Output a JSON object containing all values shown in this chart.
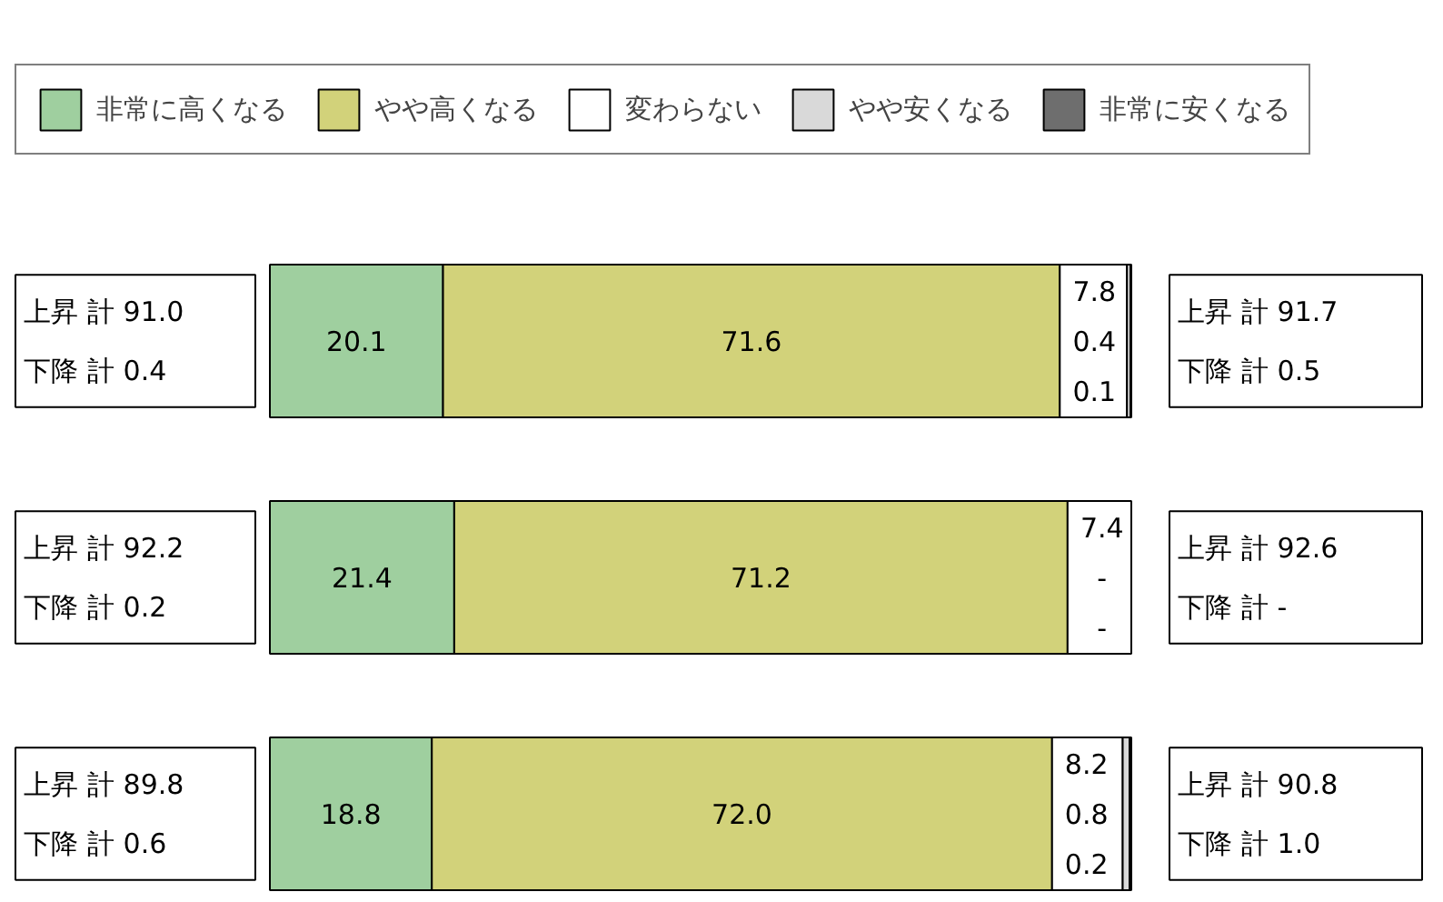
{
  "chart_data": {
    "type": "bar",
    "orientation": "horizontal",
    "stacked": true,
    "categories": [
      null,
      null,
      null
    ],
    "legend": "top",
    "tick_labels": false,
    "series": [
      {
        "name": "非常に高くなる",
        "color": "#9fcf9f",
        "values": [
          20.1,
          21.4,
          18.8
        ],
        "value_labels": [
          "20.1",
          "21.4",
          "18.8"
        ]
      },
      {
        "name": "やや高くなる",
        "color": "#d2d27a",
        "values": [
          71.6,
          71.2,
          72.0
        ],
        "value_labels": [
          "71.6",
          "71.2",
          "72.0"
        ]
      },
      {
        "name": "変わらない",
        "color": "#ffffff",
        "values": [
          7.8,
          7.4,
          8.2
        ],
        "value_labels": [
          "7.8",
          "7.4",
          "8.2"
        ]
      },
      {
        "name": "やや安くなる",
        "color": "#d9d9d9",
        "values": [
          0.4,
          null,
          0.8
        ],
        "value_labels": [
          "0.4",
          "-",
          "0.8"
        ]
      },
      {
        "name": "非常に安くなる",
        "color": "#6e6e6e",
        "values": [
          0.1,
          null,
          0.2
        ],
        "value_labels": [
          "0.1",
          "-",
          "0.2"
        ]
      }
    ],
    "annotations": [
      "上昇 計 91.0",
      "下降 計 0.4",
      "上昇 計 91.7",
      "下降 計 0.5",
      "上昇 計 92.2",
      "下降 計 0.2",
      "上昇 計 92.6",
      "下降 計 -",
      "上昇 計 89.8",
      "下降 計 0.6",
      "上昇 計 90.8",
      "下降 計 1.0"
    ]
  }
}
